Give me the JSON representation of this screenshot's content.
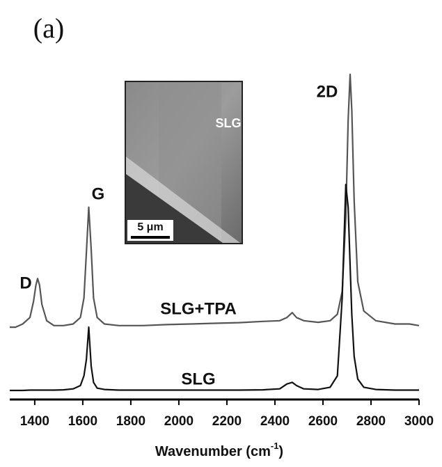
{
  "panel_label": "(a)",
  "chart_data": {
    "type": "line",
    "xlabel": [
      "Wavenumber (cm",
      "-1",
      ")"
    ],
    "annotations": [
      "D",
      "G",
      "2D",
      "SLG+TPA",
      "SLG"
    ],
    "inset": {
      "label": "SLG",
      "scale_bar": "5 μm"
    },
    "x": [
      1296,
      1320,
      1350,
      1380,
      1395,
      1405,
      1412,
      1420,
      1430,
      1450,
      1480,
      1520,
      1560,
      1590,
      1605,
      1615,
      1625,
      1635,
      1645,
      1660,
      1690,
      1750,
      1850,
      1950,
      2050,
      2150,
      2250,
      2350,
      2420,
      2450,
      2472,
      2490,
      2520,
      2580,
      2630,
      2660,
      2680,
      2695,
      2705,
      2713,
      2720,
      2730,
      2745,
      2770,
      2820,
      2900,
      2960,
      3000
    ],
    "series": [
      {
        "name": "SLG+TPA",
        "color": "#555555",
        "values": [
          21,
          21,
          22,
          24,
          29,
          34,
          36,
          34,
          28,
          23,
          21.5,
          21.5,
          22,
          24,
          30,
          44,
          58,
          45,
          30,
          24,
          22,
          21.5,
          21.5,
          21.8,
          22,
          22.2,
          22.4,
          22.8,
          23,
          24,
          25.5,
          24,
          23,
          22.5,
          23,
          25,
          32,
          55,
          85,
          99,
          88,
          60,
          35,
          26,
          23,
          22,
          22,
          21.5
        ]
      },
      {
        "name": "SLG",
        "color": "#111111",
        "values": [
          1.5,
          1.5,
          1.5,
          1.6,
          1.6,
          1.6,
          1.6,
          1.6,
          1.6,
          1.6,
          1.6,
          1.7,
          2,
          3,
          6,
          11,
          21,
          9,
          4,
          2.2,
          1.8,
          1.6,
          1.6,
          1.6,
          1.6,
          1.6,
          1.6,
          1.7,
          2,
          3.5,
          4,
          3,
          2,
          1.8,
          2.5,
          6,
          30,
          65,
          58,
          40,
          25,
          12,
          5,
          2.5,
          1.8,
          1.6,
          1.6,
          1.6
        ]
      }
    ],
    "xlim": [
      1296,
      3000
    ],
    "ylim": [
      0,
      100
    ],
    "xticks": [
      1400,
      1600,
      1800,
      2000,
      2200,
      2400,
      2600,
      2800,
      3000
    ]
  }
}
